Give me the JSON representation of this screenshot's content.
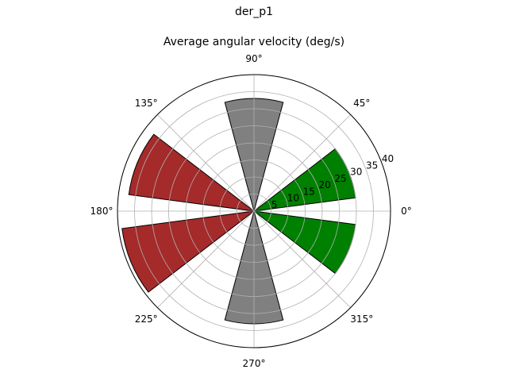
{
  "figure": {
    "suptitle": "der_p1",
    "title": "Average angular velocity (deg/s)"
  },
  "chart_data": {
    "type": "bar",
    "projection": "polar",
    "title": "Average angular velocity (deg/s)",
    "suptitle": "der_p1",
    "theta_tick_labels": [
      "0°",
      "45°",
      "90°",
      "135°",
      "180°",
      "225°",
      "270°",
      "315°"
    ],
    "r_tick_labels": [
      "5",
      "10",
      "15",
      "20",
      "25",
      "30",
      "35",
      "40"
    ],
    "r_ticks": [
      5,
      10,
      15,
      20,
      25,
      30,
      35,
      40
    ],
    "rlim": [
      0,
      40
    ],
    "r_label_angle_deg": 22.5,
    "grid": true,
    "bar_width_deg": 30,
    "bars": [
      {
        "theta_deg": 22.5,
        "value": 30,
        "color": "#008000"
      },
      {
        "theta_deg": 90,
        "value": 33,
        "color": "#808080"
      },
      {
        "theta_deg": 157.5,
        "value": 37,
        "color": "#a52a2a"
      },
      {
        "theta_deg": 202.5,
        "value": 39,
        "color": "#a52a2a"
      },
      {
        "theta_deg": 270,
        "value": 33,
        "color": "#808080"
      },
      {
        "theta_deg": 337.5,
        "value": 30,
        "color": "#008000"
      }
    ]
  }
}
